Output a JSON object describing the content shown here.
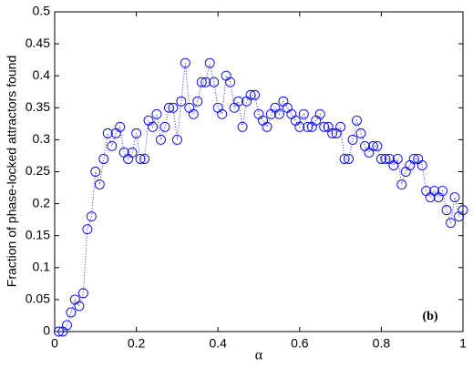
{
  "chart_data": {
    "type": "line",
    "marker": "circle",
    "line_style": "dotted",
    "color": "#0000ff",
    "xlabel": "α",
    "ylabel": "Fraction of phase-locked attractors found",
    "annotation": "(b)",
    "x": [
      0.01,
      0.02,
      0.03,
      0.04,
      0.05,
      0.06,
      0.07,
      0.08,
      0.09,
      0.1,
      0.11,
      0.12,
      0.13,
      0.14,
      0.15,
      0.16,
      0.17,
      0.18,
      0.19,
      0.2,
      0.21,
      0.22,
      0.23,
      0.24,
      0.25,
      0.26,
      0.27,
      0.28,
      0.29,
      0.3,
      0.31,
      0.32,
      0.33,
      0.34,
      0.35,
      0.36,
      0.37,
      0.38,
      0.39,
      0.4,
      0.41,
      0.42,
      0.43,
      0.44,
      0.45,
      0.46,
      0.47,
      0.48,
      0.49,
      0.5,
      0.51,
      0.52,
      0.53,
      0.54,
      0.55,
      0.56,
      0.57,
      0.58,
      0.59,
      0.6,
      0.61,
      0.62,
      0.63,
      0.64,
      0.65,
      0.66,
      0.67,
      0.68,
      0.69,
      0.7,
      0.71,
      0.72,
      0.73,
      0.74,
      0.75,
      0.76,
      0.77,
      0.78,
      0.79,
      0.8,
      0.81,
      0.82,
      0.83,
      0.84,
      0.85,
      0.86,
      0.87,
      0.88,
      0.89,
      0.9,
      0.91,
      0.92,
      0.93,
      0.94,
      0.95,
      0.96,
      0.97,
      0.98,
      0.99,
      1
    ],
    "values": [
      0,
      0,
      0.01,
      0.03,
      0.05,
      0.04,
      0.06,
      0.16,
      0.18,
      0.25,
      0.23,
      0.27,
      0.31,
      0.29,
      0.31,
      0.32,
      0.28,
      0.27,
      0.28,
      0.31,
      0.27,
      0.27,
      0.33,
      0.32,
      0.34,
      0.3,
      0.32,
      0.35,
      0.35,
      0.3,
      0.36,
      0.42,
      0.35,
      0.34,
      0.36,
      0.39,
      0.39,
      0.42,
      0.39,
      0.35,
      0.34,
      0.4,
      0.39,
      0.35,
      0.36,
      0.32,
      0.36,
      0.37,
      0.37,
      0.34,
      0.33,
      0.32,
      0.34,
      0.35,
      0.34,
      0.36,
      0.35,
      0.34,
      0.33,
      0.32,
      0.34,
      0.32,
      0.32,
      0.33,
      0.34,
      0.32,
      0.32,
      0.31,
      0.31,
      0.32,
      0.27,
      0.27,
      0.3,
      0.33,
      0.31,
      0.29,
      0.28,
      0.29,
      0.29,
      0.27,
      0.27,
      0.27,
      0.26,
      0.27,
      0.23,
      0.25,
      0.26,
      0.27,
      0.27,
      0.26,
      0.22,
      0.21,
      0.22,
      0.21,
      0.22,
      0.19,
      0.17,
      0.21,
      0.18,
      0.19
    ],
    "xlim": [
      0,
      1
    ],
    "xticks": [
      0,
      0.2,
      0.4,
      0.6,
      0.8,
      1
    ],
    "ylim": [
      0,
      0.5
    ],
    "yticks": [
      0,
      0.05,
      0.1,
      0.15,
      0.2,
      0.25,
      0.3,
      0.35,
      0.4,
      0.45,
      0.5
    ]
  }
}
